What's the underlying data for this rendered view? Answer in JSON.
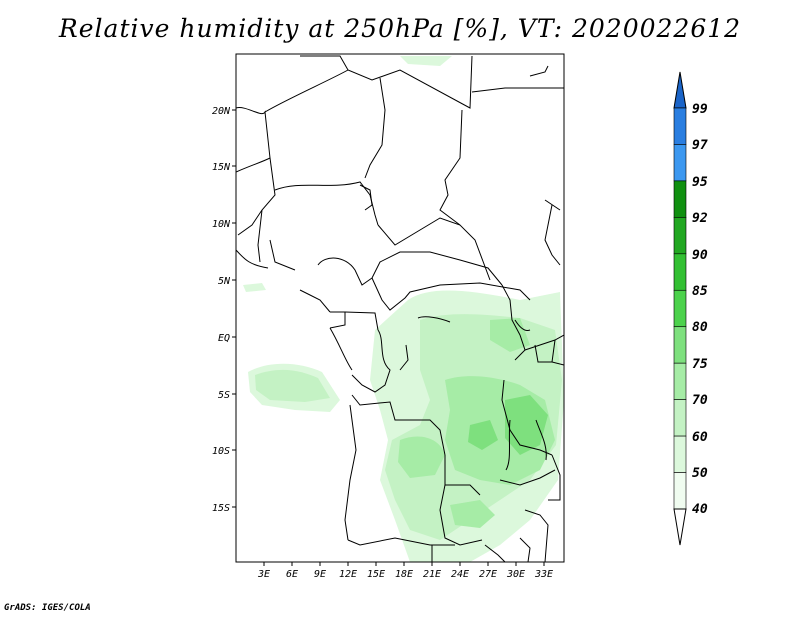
{
  "title": "Relative humidity at 250hPa [%], VT: 2020022612",
  "footer": "GrADS: IGES/COLA",
  "map": {
    "lon_labels": [
      "3E",
      "6E",
      "9E",
      "12E",
      "15E",
      "18E",
      "21E",
      "24E",
      "27E",
      "30E",
      "33E"
    ],
    "lat_labels": [
      "20N",
      "15N",
      "10N",
      "5N",
      "EQ",
      "5S",
      "10S",
      "15S"
    ]
  },
  "colorbar": {
    "levels": [
      "99",
      "97",
      "95",
      "92",
      "90",
      "85",
      "80",
      "75",
      "70",
      "60",
      "50",
      "40"
    ],
    "colors": [
      "#1a64c8",
      "#2a7ee0",
      "#3c98f0",
      "#109010",
      "#22a822",
      "#33c033",
      "#4cd24c",
      "#7ee07e",
      "#a6eca6",
      "#c4f2c4",
      "#dcf8dc",
      "#f0fcf0"
    ]
  }
}
